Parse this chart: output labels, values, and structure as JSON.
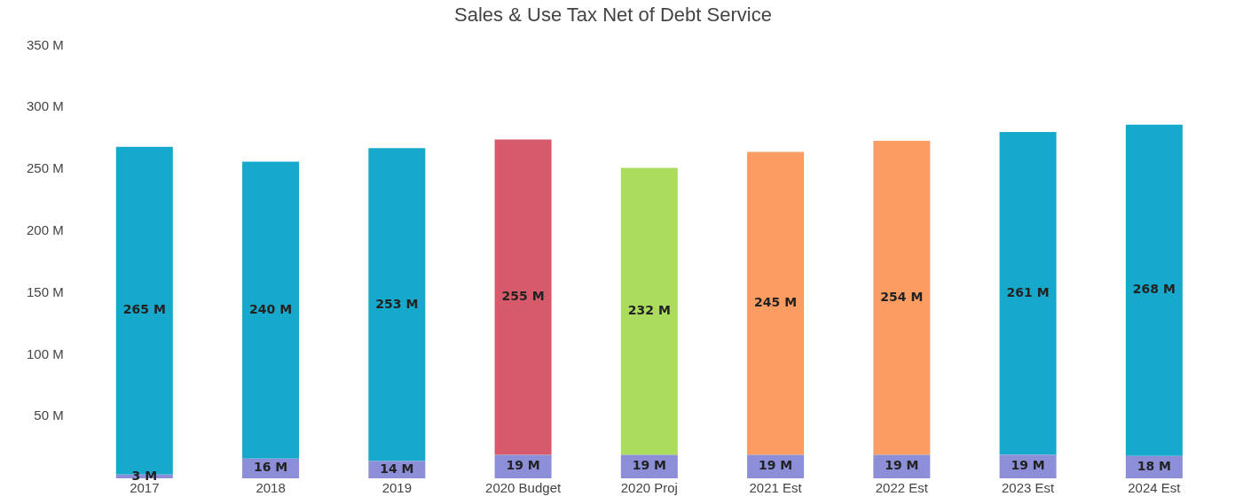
{
  "chart_data": {
    "type": "bar",
    "title": "Sales & Use Tax Net of Debt Service",
    "stacked": true,
    "categories": [
      "2017",
      "2018",
      "2019",
      "2020 Budget",
      "2020 Proj",
      "2021 Est",
      "2022 Est",
      "2023 Est",
      "2024 Est"
    ],
    "series": [
      {
        "color": "#8c8fd8",
        "values": [
          3,
          16,
          14,
          19,
          19,
          19,
          19,
          19,
          18
        ],
        "value_labels": [
          "3 M",
          "16 M",
          "14 M",
          "19 M",
          "19 M",
          "19 M",
          "19 M",
          "19 M",
          "18 M"
        ]
      },
      {
        "colors": [
          "#17a9cb",
          "#17a9cb",
          "#17a9cb",
          "#d75a6b",
          "#abdc5e",
          "#fb9c62",
          "#fb9c62",
          "#17a9cb",
          "#17a9cb"
        ],
        "values": [
          265,
          240,
          253,
          255,
          232,
          245,
          254,
          261,
          268
        ],
        "value_labels": [
          "265 M",
          "240 M",
          "253 M",
          "255 M",
          "232 M",
          "245 M",
          "254 M",
          "261 M",
          "268 M"
        ]
      }
    ],
    "ylim": [
      0,
      350
    ],
    "yticks": [
      {
        "value": 50,
        "label": "50 M"
      },
      {
        "value": 100,
        "label": "100 M"
      },
      {
        "value": 150,
        "label": "150 M"
      },
      {
        "value": 200,
        "label": "200 M"
      },
      {
        "value": 250,
        "label": "250 M"
      },
      {
        "value": 300,
        "label": "300 M"
      },
      {
        "value": 350,
        "label": "350 M"
      }
    ],
    "grid": false,
    "legend": false
  }
}
